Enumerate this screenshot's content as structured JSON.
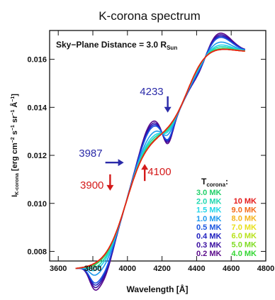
{
  "chart_data": {
    "type": "line",
    "title": "K-corona spectrum",
    "subtitle_main": "Sky−Plane Distance = 3.0 R",
    "subtitle_sub": "Sun",
    "xlabel": "Wavelength [Å]",
    "ylabel_parts": [
      "I",
      "K-corona",
      " [erg cm",
      "−2",
      " s",
      "−1",
      " sr",
      "−1",
      " Å",
      "−1",
      "]"
    ],
    "xlim": [
      3550,
      4800
    ],
    "ylim": [
      0.0076,
      0.0172
    ],
    "xticks": [
      "3600",
      "3800",
      "4000",
      "4200",
      "4400",
      "4600",
      "4800"
    ],
    "yticks": [
      "0.008",
      "0.010",
      "0.012",
      "0.014",
      "0.016"
    ],
    "grid": false,
    "legend_placement": "bottom-right",
    "legend_title_main": "T",
    "legend_title_sub": "corona",
    "legend_title_colon": ":",
    "series": [
      {
        "name": "0.2 MK",
        "color": "#5a0a8a",
        "T": 0.2
      },
      {
        "name": "0.3 MK",
        "color": "#3a0fa0",
        "T": 0.3
      },
      {
        "name": "0.4 MK",
        "color": "#2020c0",
        "T": 0.4
      },
      {
        "name": "0.5 MK",
        "color": "#1a55e0",
        "T": 0.5
      },
      {
        "name": "1.0 MK",
        "color": "#1c9aee",
        "T": 1.0
      },
      {
        "name": "1.5 MK",
        "color": "#22d6e8",
        "T": 1.5
      },
      {
        "name": "2.0 MK",
        "color": "#20d8b0",
        "T": 2.0
      },
      {
        "name": "3.0 MK",
        "color": "#21d06a",
        "T": 3.0
      },
      {
        "name": "4.0 MK",
        "color": "#33d633",
        "T": 4.0
      },
      {
        "name": "5.0 MK",
        "color": "#7edc22",
        "T": 5.0
      },
      {
        "name": "6.0 MK",
        "color": "#b8e21a",
        "T": 6.0
      },
      {
        "name": "7.0 MK",
        "color": "#e8e01a",
        "T": 7.0
      },
      {
        "name": "8.0 MK",
        "color": "#f5b21a",
        "T": 8.0
      },
      {
        "name": "9.0 MK",
        "color": "#f46a18",
        "T": 9.0
      },
      {
        "name": "10 MK",
        "color": "#e41a1a",
        "T": 10.0
      }
    ],
    "legend_left": [
      "3.0 MK",
      "2.0 MK",
      "1.5 MK",
      "1.0 MK",
      "0.5 MK",
      "0.4 MK",
      "0.3 MK",
      "0.2 MK"
    ],
    "legend_right": [
      "10 MK",
      "9.0 MK",
      "8.0 MK",
      "7.0 MK",
      "6.0 MK",
      "5.0 MK",
      "4.0 MK"
    ],
    "annotations": [
      {
        "text": "4233",
        "color": "#2a2aa8",
        "x": 4233,
        "y": 0.01375,
        "arrow": "down"
      },
      {
        "text": "3987",
        "color": "#2a2aa8",
        "x": 3987,
        "y": 0.0117,
        "arrow": "right"
      },
      {
        "text": "4100",
        "color": "#d41a1a",
        "x": 4100,
        "y": 0.0117,
        "arrow": "up"
      },
      {
        "text": "3900",
        "color": "#d41a1a",
        "x": 3900,
        "y": 0.0105,
        "arrow": "down"
      }
    ]
  }
}
